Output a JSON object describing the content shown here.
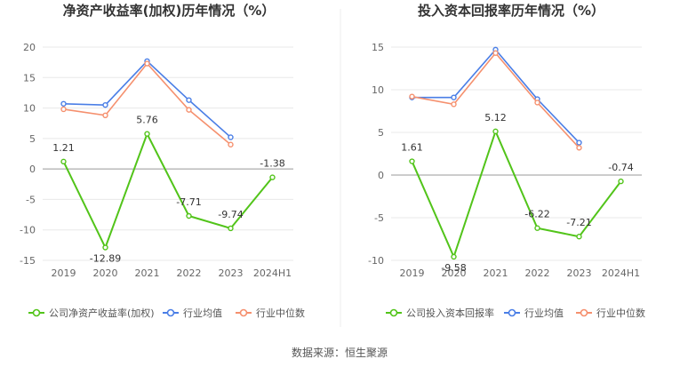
{
  "source": "数据来源：恒生聚源",
  "chart_data": [
    {
      "type": "line",
      "title": "净资产收益率(加权)历年情况（%）",
      "categories": [
        "2019",
        "2020",
        "2021",
        "2022",
        "2023",
        "2024H1"
      ],
      "ylim": [
        -15,
        20
      ],
      "yticks": [
        -15,
        -10,
        -5,
        0,
        5,
        10,
        15,
        20
      ],
      "series": [
        {
          "name": "公司净资产收益率(加权)",
          "color": "#52c41a",
          "values": [
            1.21,
            -12.89,
            5.76,
            -7.71,
            -9.74,
            -1.38
          ],
          "labels": [
            "1.21",
            "-12.89",
            "5.76",
            "-7.71",
            "-9.74",
            "-1.38"
          ]
        },
        {
          "name": "行业均值",
          "color": "#4a7ee6",
          "values": [
            10.7,
            10.5,
            17.7,
            11.3,
            5.2,
            null
          ]
        },
        {
          "name": "行业中位数",
          "color": "#f5906e",
          "values": [
            9.8,
            8.8,
            17.3,
            9.7,
            4.0,
            null
          ]
        }
      ]
    },
    {
      "type": "line",
      "title": "投入资本回报率历年情况（%）",
      "categories": [
        "2019",
        "2020",
        "2021",
        "2022",
        "2023",
        "2024H1"
      ],
      "ylim": [
        -10,
        15
      ],
      "yticks": [
        -10,
        -5,
        0,
        5,
        10,
        15
      ],
      "series": [
        {
          "name": "公司投入资本回报率",
          "color": "#52c41a",
          "values": [
            1.61,
            -9.58,
            5.12,
            -6.22,
            -7.21,
            -0.74
          ],
          "labels": [
            "1.61",
            "-9.58",
            "5.12",
            "-6.22",
            "-7.21",
            "-0.74"
          ]
        },
        {
          "name": "行业均值",
          "color": "#4a7ee6",
          "values": [
            9.1,
            9.1,
            14.7,
            8.9,
            3.8,
            null
          ]
        },
        {
          "name": "行业中位数",
          "color": "#f5906e",
          "values": [
            9.2,
            8.3,
            14.3,
            8.5,
            3.2,
            null
          ]
        }
      ]
    }
  ]
}
